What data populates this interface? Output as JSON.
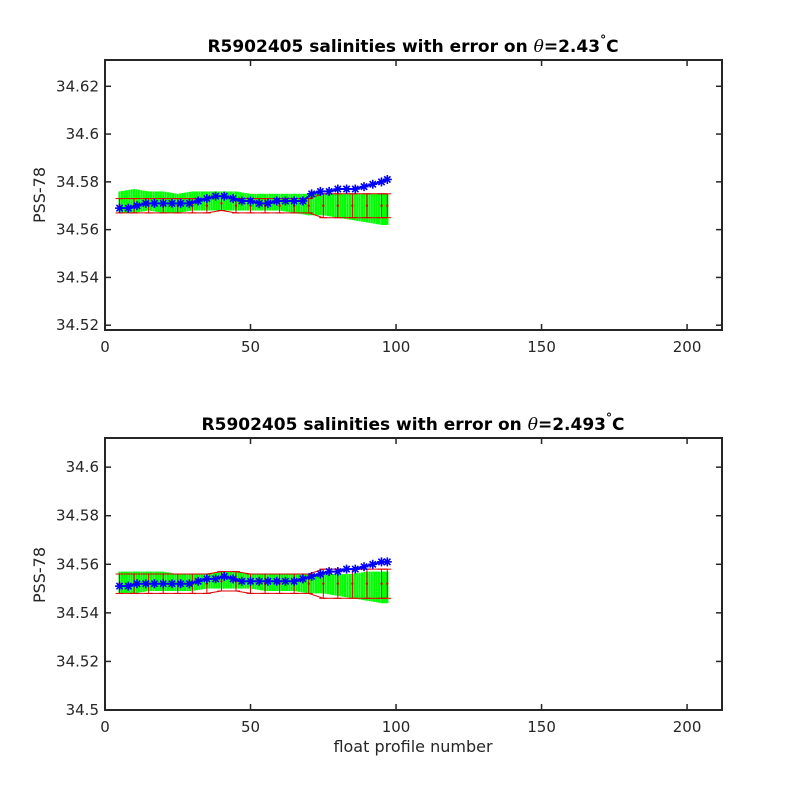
{
  "colors": {
    "axis": "#262626",
    "mapped_band": "#00ff00",
    "error_bar": "#dd0000",
    "calibrated_marker": "#0000ff"
  },
  "chart_data": [
    {
      "type": "line",
      "title_prefix": "R5902405 salinities with error on ",
      "title_symbol": "θ",
      "title_value": "=2.43",
      "title_degree": "°",
      "title_unit": "C",
      "xlabel": "",
      "ylabel": "PSS-78",
      "xlim": [
        0,
        212
      ],
      "ylim": [
        34.518,
        34.631
      ],
      "xticks": [
        0,
        50,
        100,
        150,
        200
      ],
      "xtick_labels": [
        "0",
        "50",
        "100",
        "150",
        "200"
      ],
      "yticks": [
        34.52,
        34.54,
        34.56,
        34.58,
        34.6,
        34.62
      ],
      "ytick_labels": [
        "34.52",
        "34.54",
        "34.56",
        "34.58",
        "34.6",
        "34.62"
      ],
      "profile_range": [
        5,
        97
      ],
      "series": [
        {
          "role": "mapped_band",
          "x": [
            5,
            10,
            15,
            20,
            25,
            30,
            35,
            40,
            45,
            50,
            55,
            60,
            65,
            70,
            75,
            80,
            85,
            90,
            95,
            97
          ],
          "lower": [
            34.567,
            34.567,
            34.568,
            34.567,
            34.567,
            34.568,
            34.568,
            34.568,
            34.568,
            34.568,
            34.568,
            34.568,
            34.567,
            34.566,
            34.566,
            34.565,
            34.564,
            34.563,
            34.562,
            34.562
          ],
          "upper": [
            34.576,
            34.577,
            34.576,
            34.576,
            34.575,
            34.576,
            34.576,
            34.576,
            34.576,
            34.575,
            34.575,
            34.575,
            34.575,
            34.575,
            34.575,
            34.575,
            34.575,
            34.575,
            34.575,
            34.575
          ]
        },
        {
          "role": "error_bars",
          "x": [
            5,
            10,
            15,
            20,
            25,
            30,
            35,
            40,
            45,
            50,
            55,
            60,
            65,
            70,
            75,
            80,
            85,
            90,
            95,
            97
          ],
          "y": [
            34.57,
            34.57,
            34.57,
            34.57,
            34.57,
            34.57,
            34.57,
            34.571,
            34.57,
            34.57,
            34.57,
            34.57,
            34.57,
            34.57,
            34.57,
            34.57,
            34.57,
            34.57,
            34.57,
            34.57
          ],
          "err": [
            0.003,
            0.003,
            0.003,
            0.003,
            0.003,
            0.003,
            0.003,
            0.003,
            0.003,
            0.003,
            0.003,
            0.003,
            0.003,
            0.003,
            0.005,
            0.005,
            0.005,
            0.005,
            0.005,
            0.005
          ]
        },
        {
          "role": "calibrated",
          "x": [
            5,
            8,
            11,
            14,
            17,
            20,
            23,
            26,
            29,
            32,
            35,
            38,
            41,
            44,
            47,
            50,
            53,
            56,
            59,
            62,
            65,
            68,
            71,
            74,
            77,
            80,
            83,
            86,
            89,
            92,
            95,
            97
          ],
          "y": [
            34.569,
            34.569,
            34.57,
            34.571,
            34.571,
            34.571,
            34.571,
            34.571,
            34.571,
            34.572,
            34.573,
            34.574,
            34.574,
            34.573,
            34.572,
            34.572,
            34.571,
            34.571,
            34.572,
            34.572,
            34.572,
            34.572,
            34.575,
            34.576,
            34.576,
            34.577,
            34.577,
            34.577,
            34.578,
            34.579,
            34.58,
            34.581
          ]
        }
      ]
    },
    {
      "type": "line",
      "title_prefix": "R5902405 salinities with error on ",
      "title_symbol": "θ",
      "title_value": "=2.493",
      "title_degree": "°",
      "title_unit": "C",
      "xlabel": "float profile number",
      "ylabel": "PSS-78",
      "xlim": [
        0,
        212
      ],
      "ylim": [
        34.5,
        34.612
      ],
      "xticks": [
        0,
        50,
        100,
        150,
        200
      ],
      "xtick_labels": [
        "0",
        "50",
        "100",
        "150",
        "200"
      ],
      "yticks": [
        34.5,
        34.52,
        34.54,
        34.56,
        34.58,
        34.6
      ],
      "ytick_labels": [
        "34.5",
        "34.52",
        "34.54",
        "34.56",
        "34.58",
        "34.6"
      ],
      "profile_range": [
        5,
        97
      ],
      "series": [
        {
          "role": "mapped_band",
          "x": [
            5,
            10,
            15,
            20,
            25,
            30,
            35,
            40,
            45,
            50,
            55,
            60,
            65,
            70,
            75,
            80,
            85,
            90,
            95,
            97
          ],
          "lower": [
            34.548,
            34.548,
            34.549,
            34.549,
            34.549,
            34.549,
            34.55,
            34.55,
            34.55,
            34.55,
            34.549,
            34.549,
            34.549,
            34.548,
            34.548,
            34.547,
            34.546,
            34.545,
            34.544,
            34.544
          ],
          "upper": [
            34.557,
            34.557,
            34.557,
            34.557,
            34.556,
            34.556,
            34.556,
            34.557,
            34.557,
            34.556,
            34.556,
            34.556,
            34.556,
            34.556,
            34.556,
            34.556,
            34.556,
            34.557,
            34.557,
            34.557
          ]
        },
        {
          "role": "error_bars",
          "x": [
            5,
            10,
            15,
            20,
            25,
            30,
            35,
            40,
            45,
            50,
            55,
            60,
            65,
            70,
            75,
            80,
            85,
            90,
            95,
            97
          ],
          "y": [
            34.552,
            34.552,
            34.552,
            34.552,
            34.552,
            34.552,
            34.552,
            34.553,
            34.553,
            34.552,
            34.552,
            34.552,
            34.552,
            34.552,
            34.552,
            34.552,
            34.552,
            34.552,
            34.552,
            34.552
          ],
          "err": [
            0.004,
            0.004,
            0.004,
            0.004,
            0.004,
            0.004,
            0.004,
            0.004,
            0.004,
            0.004,
            0.004,
            0.004,
            0.004,
            0.004,
            0.006,
            0.006,
            0.006,
            0.006,
            0.006,
            0.006
          ]
        },
        {
          "role": "calibrated",
          "x": [
            5,
            8,
            11,
            14,
            17,
            20,
            23,
            26,
            29,
            32,
            35,
            38,
            41,
            44,
            47,
            50,
            53,
            56,
            59,
            62,
            65,
            68,
            71,
            74,
            77,
            80,
            83,
            86,
            89,
            92,
            95,
            97
          ],
          "y": [
            34.551,
            34.551,
            34.552,
            34.552,
            34.552,
            34.552,
            34.552,
            34.552,
            34.552,
            34.553,
            34.554,
            34.554,
            34.555,
            34.554,
            34.553,
            34.553,
            34.553,
            34.553,
            34.553,
            34.553,
            34.553,
            34.554,
            34.555,
            34.556,
            34.557,
            34.557,
            34.558,
            34.558,
            34.559,
            34.56,
            34.561,
            34.561
          ]
        }
      ]
    }
  ]
}
